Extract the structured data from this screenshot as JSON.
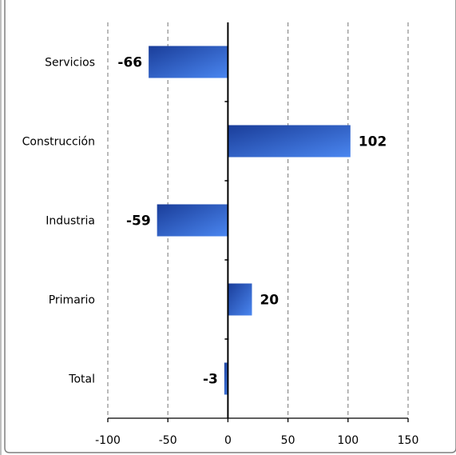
{
  "chart_data": {
    "type": "bar",
    "orientation": "horizontal",
    "categories": [
      "Servicios",
      "Construcción",
      "Industria",
      "Primario",
      "Total"
    ],
    "values": [
      -66,
      102,
      -59,
      20,
      -3
    ],
    "data_labels": [
      "-66",
      "102",
      "-59",
      "20",
      "-3"
    ],
    "x_ticks": [
      -100,
      -50,
      0,
      50,
      100,
      150
    ],
    "x_tick_labels": [
      "-100",
      "-50",
      "0",
      "50",
      "100",
      "150"
    ],
    "xlim": [
      -100,
      150
    ],
    "grid": "vertical-dashed",
    "legend": "none",
    "title": "",
    "xlabel": "",
    "ylabel": "",
    "colors": {
      "bar_dark": "#1a3d99",
      "bar_light": "#4a86f0",
      "gridline": "#8c8c8c",
      "axis": "#000000",
      "frame": "#7f7f7f"
    }
  }
}
